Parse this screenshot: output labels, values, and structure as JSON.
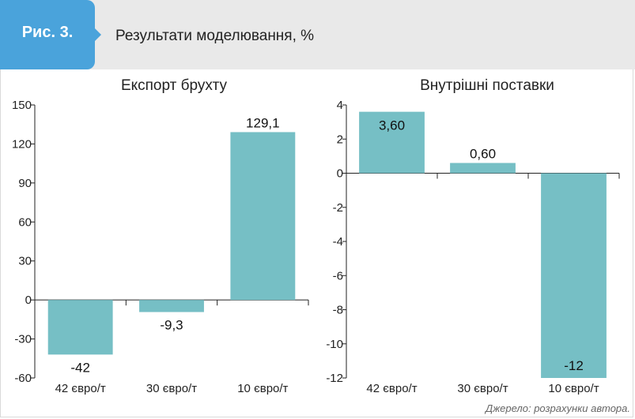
{
  "header": {
    "figure_label": "Рис. 3.",
    "title": "Результати моделювання, %"
  },
  "source": "Джерело: розрахунки автора.",
  "colors": {
    "bar": "#76bfc5",
    "header_bg": "#e9e9e9",
    "figure_tag_bg": "#4aa3db"
  },
  "chart_data": [
    {
      "type": "bar",
      "title": "Експорт брухту",
      "categories": [
        "42 євро/т",
        "30 євро/т",
        "10 євро/т"
      ],
      "values": [
        -42,
        -9.3,
        129.1
      ],
      "data_labels": [
        "-42",
        "-9,3",
        "129,1"
      ],
      "ylim": [
        -60,
        150
      ],
      "yticks": [
        -60,
        -30,
        0,
        30,
        60,
        90,
        120,
        150
      ],
      "ytick_labels": [
        "-60",
        "-30",
        "0",
        "30",
        "60",
        "90",
        "120",
        "150"
      ],
      "grid": false,
      "xlabel": "",
      "ylabel": ""
    },
    {
      "type": "bar",
      "title": "Внутрішні поставки",
      "categories": [
        "42 євро/т",
        "30 євро/т",
        "10 євро/т"
      ],
      "values": [
        3.6,
        0.6,
        -12
      ],
      "data_labels": [
        "3,60",
        "0,60",
        "-12"
      ],
      "ylim": [
        -12,
        4
      ],
      "yticks": [
        -12,
        -10,
        -8,
        -6,
        -4,
        -2,
        0,
        2,
        4
      ],
      "ytick_labels": [
        "-12",
        "-10",
        "-8",
        "-6",
        "-4",
        "-2",
        "0",
        "2",
        "4"
      ],
      "grid": false,
      "xlabel": "",
      "ylabel": ""
    }
  ]
}
